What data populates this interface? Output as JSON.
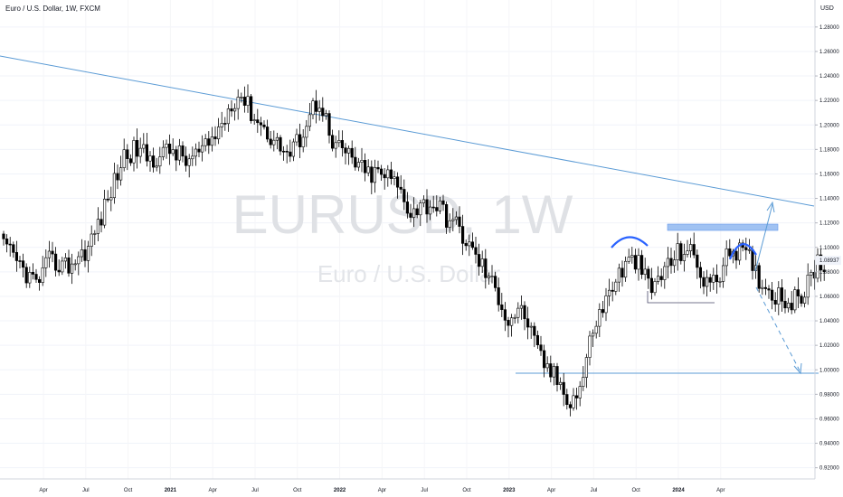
{
  "header": {
    "symbol_line": "Euro / U.S. Dollar, 1W, FXCM",
    "currency": "USD"
  },
  "watermark": {
    "ticker": "EURUSD, 1W",
    "name": "Euro / U.S. Dollar"
  },
  "colors": {
    "bull": "#ffffff",
    "bear": "#000000",
    "trendline": "#5b9bd5",
    "annotation_blue": "#2962ff",
    "resistance_zone": "#90b8f0",
    "last_price_bg": "#f0f3fa"
  },
  "chart_data": {
    "type": "candlestick",
    "timeframe": "1W",
    "x_ticks": [
      "Apr",
      "Jul",
      "Oct",
      "2021",
      "Apr",
      "Jul",
      "Oct",
      "2022",
      "Apr",
      "Jul",
      "Oct",
      "2023",
      "Apr",
      "Jul",
      "Oct",
      "2024",
      "Apr"
    ],
    "y_ticks": [
      "1.28000",
      "1.26000",
      "1.24000",
      "1.22000",
      "1.20000",
      "1.18000",
      "1.16000",
      "1.14000",
      "1.12000",
      "1.10000",
      "1.08000",
      "1.06000",
      "1.04000",
      "1.02000",
      "1.00000",
      "0.98000",
      "0.96000",
      "0.94000",
      "0.92000"
    ],
    "ylim": [
      0.92,
      1.29
    ],
    "last_price": "1.08937",
    "close_path": [
      [
        0,
        1.1
      ],
      [
        6,
        1.082
      ],
      [
        10,
        1.07
      ],
      [
        14,
        1.088
      ],
      [
        20,
        1.085
      ],
      [
        26,
        1.1
      ],
      [
        30,
        1.125
      ],
      [
        37,
        1.175
      ],
      [
        41,
        1.18
      ],
      [
        45,
        1.172
      ],
      [
        52,
        1.18
      ],
      [
        56,
        1.17
      ],
      [
        59,
        1.175
      ],
      [
        62,
        1.18
      ],
      [
        67,
        1.2
      ],
      [
        70,
        1.22
      ],
      [
        73,
        1.225
      ],
      [
        75,
        1.215
      ],
      [
        79,
        1.2
      ],
      [
        84,
        1.185
      ],
      [
        88,
        1.175
      ],
      [
        91,
        1.19
      ],
      [
        95,
        1.215
      ],
      [
        97,
        1.22
      ],
      [
        98,
        1.215
      ],
      [
        101,
        1.18
      ],
      [
        104,
        1.18
      ],
      [
        108,
        1.17
      ],
      [
        111,
        1.16
      ],
      [
        115,
        1.16
      ],
      [
        118,
        1.158
      ],
      [
        121,
        1.15
      ],
      [
        125,
        1.13
      ],
      [
        129,
        1.135
      ],
      [
        133,
        1.135
      ],
      [
        136,
        1.125
      ],
      [
        140,
        1.115
      ],
      [
        143,
        1.1
      ],
      [
        147,
        1.085
      ],
      [
        149,
        1.075
      ],
      [
        152,
        1.06
      ],
      [
        155,
        1.04
      ],
      [
        158,
        1.05
      ],
      [
        161,
        1.04
      ],
      [
        163,
        1.02
      ],
      [
        166,
        1.005
      ],
      [
        169,
        0.995
      ],
      [
        172,
        0.985
      ],
      [
        174,
        0.975
      ],
      [
        176,
        0.98
      ],
      [
        178,
        0.995
      ],
      [
        181,
        1.035
      ],
      [
        184,
        1.05
      ],
      [
        187,
        1.07
      ],
      [
        191,
        1.085
      ],
      [
        194,
        1.09
      ],
      [
        197,
        1.075
      ],
      [
        199,
        1.065
      ],
      [
        201,
        1.075
      ],
      [
        204,
        1.085
      ],
      [
        207,
        1.095
      ],
      [
        210,
        1.1
      ],
      [
        212,
        1.09
      ],
      [
        215,
        1.075
      ],
      [
        218,
        1.07
      ],
      [
        221,
        1.085
      ],
      [
        224,
        1.1
      ],
      [
        227,
        1.095
      ],
      [
        229,
        1.09
      ],
      [
        232,
        1.075
      ],
      [
        235,
        1.065
      ],
      [
        239,
        1.06
      ],
      [
        242,
        1.055
      ],
      [
        245,
        1.06
      ],
      [
        248,
        1.075
      ],
      [
        250,
        1.09
      ],
      [
        252,
        1.08
      ]
    ]
  }
}
